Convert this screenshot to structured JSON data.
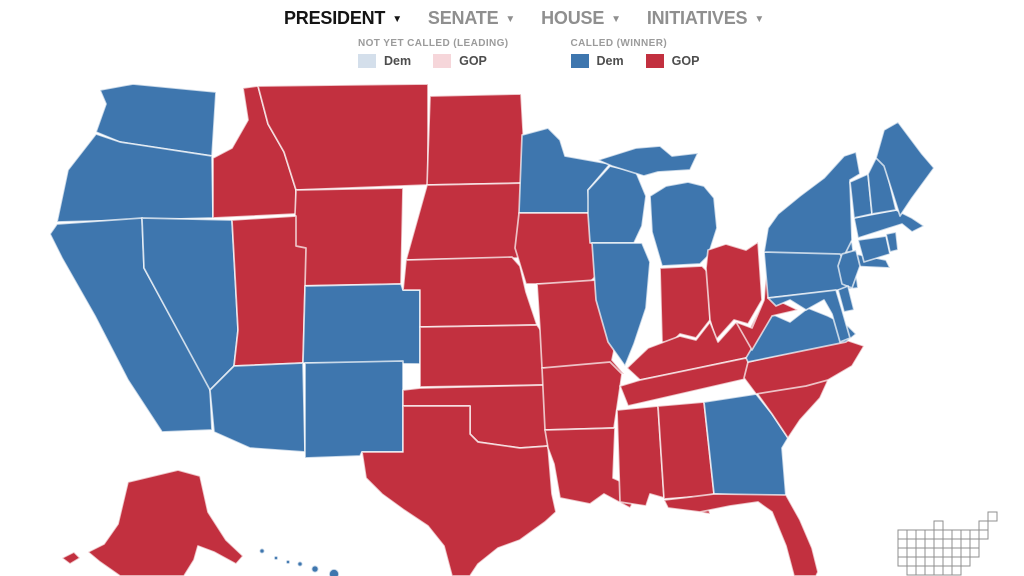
{
  "nav": {
    "items": [
      {
        "label": "PRESIDENT",
        "active": true
      },
      {
        "label": "SENATE",
        "active": false
      },
      {
        "label": "HOUSE",
        "active": false
      },
      {
        "label": "INITIATIVES",
        "active": false
      }
    ],
    "dropdown_icon": "▼"
  },
  "legend": {
    "groups": [
      {
        "title": "NOT YET CALLED (LEADING)",
        "items": [
          {
            "label": "Dem",
            "color_key": "leading_dem"
          },
          {
            "label": "GOP",
            "color_key": "leading_gop"
          }
        ]
      },
      {
        "title": "CALLED (WINNER)",
        "items": [
          {
            "label": "Dem",
            "color_key": "called_dem"
          },
          {
            "label": "GOP",
            "color_key": "called_gop"
          }
        ]
      }
    ]
  },
  "colors": {
    "called_dem": "#3e76ae",
    "called_gop": "#c2303f",
    "leading_dem": "#d4dfeb",
    "leading_gop": "#f6d6da"
  },
  "map": {
    "type": "choropleth",
    "region": "United States",
    "contest": "PRESIDENT",
    "states": {
      "WA": "dem",
      "OR": "dem",
      "CA": "dem",
      "NV": "dem",
      "AZ": "dem",
      "NM": "dem",
      "CO": "dem",
      "HI": "dem",
      "MN": "dem",
      "WI": "dem",
      "MI": "dem",
      "IL": "dem",
      "GA": "dem",
      "VA": "dem",
      "MD": "dem",
      "DE": "dem",
      "NJ": "dem",
      "PA": "dem",
      "NY": "dem",
      "CT": "dem",
      "RI": "dem",
      "MA": "dem",
      "VT": "dem",
      "NH": "dem",
      "ME": "dem",
      "ID": "gop",
      "MT": "gop",
      "WY": "gop",
      "UT": "gop",
      "ND": "gop",
      "SD": "gop",
      "NE": "gop",
      "KS": "gop",
      "OK": "gop",
      "TX": "gop",
      "IA": "gop",
      "MO": "gop",
      "AR": "gop",
      "LA": "gop",
      "MS": "gop",
      "AL": "gop",
      "TN": "gop",
      "KY": "gop",
      "IN": "gop",
      "OH": "gop",
      "WV": "gop",
      "NC": "gop",
      "SC": "gop",
      "FL": "gop",
      "AK": "gop"
    }
  }
}
